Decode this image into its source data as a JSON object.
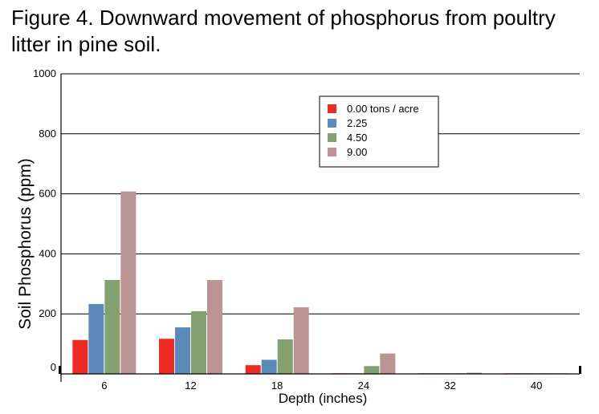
{
  "figure": {
    "title": "Figure 4. Downward movement of phosphorus from poultry litter in pine soil."
  },
  "chart_data": {
    "type": "bar",
    "xlabel": "Depth (inches)",
    "ylabel": "Soil Phosphorus (ppm)",
    "ylim": [
      0,
      1000
    ],
    "yticks": [
      "0",
      "200",
      "400",
      "600",
      "800",
      "1000"
    ],
    "grid": true,
    "legend_position": "top-right",
    "categories": [
      "6",
      "12",
      "18",
      "24",
      "32",
      "40"
    ],
    "series": [
      {
        "name": "0.00 tons / acre",
        "color": "#ee2a24",
        "values": [
          113,
          117,
          29,
          2,
          2,
          2
        ]
      },
      {
        "name": "2.25",
        "color": "#5b8ab8",
        "values": [
          233,
          155,
          47,
          2,
          2,
          2
        ]
      },
      {
        "name": "4.50",
        "color": "#84a070",
        "values": [
          313,
          209,
          115,
          26,
          2,
          2
        ]
      },
      {
        "name": "9.00",
        "color": "#bc9393",
        "values": [
          608,
          313,
          222,
          68,
          4,
          2
        ]
      }
    ]
  }
}
